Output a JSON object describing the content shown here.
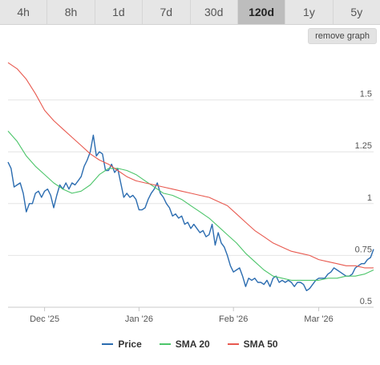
{
  "tabs": [
    {
      "label": "4h",
      "active": false
    },
    {
      "label": "8h",
      "active": false
    },
    {
      "label": "1d",
      "active": false
    },
    {
      "label": "7d",
      "active": false
    },
    {
      "label": "30d",
      "active": false
    },
    {
      "label": "120d",
      "active": true
    },
    {
      "label": "1y",
      "active": false
    },
    {
      "label": "5y",
      "active": false
    }
  ],
  "remove_graph_label": "remove graph",
  "colors": {
    "price": "#2b6cb0",
    "sma20": "#4cc56a",
    "sma50": "#e8594f"
  },
  "legend": [
    {
      "label": "Price",
      "color": "#2b6cb0"
    },
    {
      "label": "SMA 20",
      "color": "#4cc56a"
    },
    {
      "label": "SMA 50",
      "color": "#e8594f"
    }
  ],
  "chart_data": {
    "type": "line",
    "title": "",
    "xlabel": "",
    "ylabel": "",
    "x_start": "2025-11-19",
    "x_end": "2026-03-19",
    "x_ticks": [
      {
        "label": "Dec '25",
        "date": "2025-12-01"
      },
      {
        "label": "Jan '26",
        "date": "2026-01-01"
      },
      {
        "label": "Feb '26",
        "date": "2026-02-01"
      },
      {
        "label": "Mar '26",
        "date": "2026-03-01"
      }
    ],
    "y_ticks": [
      0.5,
      0.75,
      1,
      1.25,
      1.5
    ],
    "y_tick_labels": [
      "0.5",
      "0.75",
      "1",
      "1.25",
      "1.5"
    ],
    "ylim": [
      0.5,
      1.75
    ],
    "grid": true,
    "legend_position": "bottom",
    "series": [
      {
        "name": "Price",
        "color": "#2b6cb0",
        "points": [
          [
            "2025-11-19",
            1.2
          ],
          [
            "2025-11-20",
            1.17
          ],
          [
            "2025-11-21",
            1.08
          ],
          [
            "2025-11-22",
            1.09
          ],
          [
            "2025-11-23",
            1.1
          ],
          [
            "2025-11-24",
            1.05
          ],
          [
            "2025-11-25",
            0.96
          ],
          [
            "2025-11-26",
            1.0
          ],
          [
            "2025-11-27",
            1.0
          ],
          [
            "2025-11-28",
            1.05
          ],
          [
            "2025-11-29",
            1.06
          ],
          [
            "2025-11-30",
            1.03
          ],
          [
            "2025-12-01",
            1.06
          ],
          [
            "2025-12-02",
            1.07
          ],
          [
            "2025-12-03",
            1.04
          ],
          [
            "2025-12-04",
            0.98
          ],
          [
            "2025-12-05",
            1.04
          ],
          [
            "2025-12-06",
            1.09
          ],
          [
            "2025-12-07",
            1.07
          ],
          [
            "2025-12-08",
            1.1
          ],
          [
            "2025-12-09",
            1.07
          ],
          [
            "2025-12-10",
            1.1
          ],
          [
            "2025-12-11",
            1.09
          ],
          [
            "2025-12-12",
            1.11
          ],
          [
            "2025-12-13",
            1.13
          ],
          [
            "2025-12-14",
            1.18
          ],
          [
            "2025-12-15",
            1.21
          ],
          [
            "2025-12-16",
            1.25
          ],
          [
            "2025-12-17",
            1.33
          ],
          [
            "2025-12-18",
            1.23
          ],
          [
            "2025-12-19",
            1.25
          ],
          [
            "2025-12-20",
            1.24
          ],
          [
            "2025-12-21",
            1.16
          ],
          [
            "2025-12-22",
            1.16
          ],
          [
            "2025-12-23",
            1.19
          ],
          [
            "2025-12-24",
            1.15
          ],
          [
            "2025-12-25",
            1.17
          ],
          [
            "2025-12-26",
            1.1
          ],
          [
            "2025-12-27",
            1.03
          ],
          [
            "2025-12-28",
            1.05
          ],
          [
            "2025-12-29",
            1.03
          ],
          [
            "2025-12-30",
            1.04
          ],
          [
            "2025-12-31",
            1.02
          ],
          [
            "2026-01-01",
            0.97
          ],
          [
            "2026-01-02",
            0.97
          ],
          [
            "2026-01-03",
            0.98
          ],
          [
            "2026-01-04",
            1.02
          ],
          [
            "2026-01-05",
            1.05
          ],
          [
            "2026-01-06",
            1.07
          ],
          [
            "2026-01-07",
            1.1
          ],
          [
            "2026-01-08",
            1.05
          ],
          [
            "2026-01-09",
            1.03
          ],
          [
            "2026-01-10",
            1.0
          ],
          [
            "2026-01-11",
            0.98
          ],
          [
            "2026-01-12",
            0.94
          ],
          [
            "2026-01-13",
            0.95
          ],
          [
            "2026-01-14",
            0.93
          ],
          [
            "2026-01-15",
            0.94
          ],
          [
            "2026-01-16",
            0.9
          ],
          [
            "2026-01-17",
            0.91
          ],
          [
            "2026-01-18",
            0.88
          ],
          [
            "2026-01-19",
            0.9
          ],
          [
            "2026-01-20",
            0.88
          ],
          [
            "2026-01-21",
            0.86
          ],
          [
            "2026-01-22",
            0.87
          ],
          [
            "2026-01-23",
            0.84
          ],
          [
            "2026-01-24",
            0.85
          ],
          [
            "2026-01-25",
            0.9
          ],
          [
            "2026-01-26",
            0.8
          ],
          [
            "2026-01-27",
            0.86
          ],
          [
            "2026-01-28",
            0.81
          ],
          [
            "2026-01-29",
            0.79
          ],
          [
            "2026-01-30",
            0.75
          ],
          [
            "2026-01-31",
            0.7
          ],
          [
            "2026-02-01",
            0.67
          ],
          [
            "2026-02-02",
            0.68
          ],
          [
            "2026-02-03",
            0.69
          ],
          [
            "2026-02-04",
            0.65
          ],
          [
            "2026-02-05",
            0.6
          ],
          [
            "2026-02-06",
            0.64
          ],
          [
            "2026-02-07",
            0.63
          ],
          [
            "2026-02-08",
            0.64
          ],
          [
            "2026-02-09",
            0.62
          ],
          [
            "2026-02-10",
            0.62
          ],
          [
            "2026-02-11",
            0.61
          ],
          [
            "2026-02-12",
            0.63
          ],
          [
            "2026-02-13",
            0.6
          ],
          [
            "2026-02-14",
            0.64
          ],
          [
            "2026-02-15",
            0.65
          ],
          [
            "2026-02-16",
            0.62
          ],
          [
            "2026-02-17",
            0.63
          ],
          [
            "2026-02-18",
            0.62
          ],
          [
            "2026-02-19",
            0.63
          ],
          [
            "2026-02-20",
            0.62
          ],
          [
            "2026-02-21",
            0.6
          ],
          [
            "2026-02-22",
            0.62
          ],
          [
            "2026-02-23",
            0.62
          ],
          [
            "2026-02-24",
            0.61
          ],
          [
            "2026-02-25",
            0.58
          ],
          [
            "2026-02-26",
            0.59
          ],
          [
            "2026-02-27",
            0.61
          ],
          [
            "2026-02-28",
            0.63
          ],
          [
            "2026-03-01",
            0.64
          ],
          [
            "2026-03-02",
            0.64
          ],
          [
            "2026-03-03",
            0.64
          ],
          [
            "2026-03-04",
            0.66
          ],
          [
            "2026-03-05",
            0.67
          ],
          [
            "2026-03-06",
            0.69
          ],
          [
            "2026-03-07",
            0.68
          ],
          [
            "2026-03-08",
            0.67
          ],
          [
            "2026-03-09",
            0.66
          ],
          [
            "2026-03-10",
            0.65
          ],
          [
            "2026-03-11",
            0.65
          ],
          [
            "2026-03-12",
            0.66
          ],
          [
            "2026-03-13",
            0.69
          ],
          [
            "2026-03-14",
            0.7
          ],
          [
            "2026-03-15",
            0.71
          ],
          [
            "2026-03-16",
            0.71
          ],
          [
            "2026-03-17",
            0.73
          ],
          [
            "2026-03-18",
            0.74
          ],
          [
            "2026-03-19",
            0.78
          ]
        ]
      },
      {
        "name": "SMA 20",
        "color": "#4cc56a",
        "points": [
          [
            "2025-11-19",
            1.35
          ],
          [
            "2025-11-22",
            1.3
          ],
          [
            "2025-11-25",
            1.23
          ],
          [
            "2025-11-28",
            1.18
          ],
          [
            "2025-12-01",
            1.14
          ],
          [
            "2025-12-04",
            1.1
          ],
          [
            "2025-12-07",
            1.07
          ],
          [
            "2025-12-10",
            1.05
          ],
          [
            "2025-12-13",
            1.06
          ],
          [
            "2025-12-16",
            1.09
          ],
          [
            "2025-12-19",
            1.14
          ],
          [
            "2025-12-22",
            1.17
          ],
          [
            "2025-12-25",
            1.17
          ],
          [
            "2025-12-28",
            1.16
          ],
          [
            "2025-12-31",
            1.14
          ],
          [
            "2026-01-03",
            1.11
          ],
          [
            "2026-01-06",
            1.08
          ],
          [
            "2026-01-09",
            1.05
          ],
          [
            "2026-01-12",
            1.04
          ],
          [
            "2026-01-15",
            1.02
          ],
          [
            "2026-01-18",
            0.99
          ],
          [
            "2026-01-21",
            0.96
          ],
          [
            "2026-01-24",
            0.93
          ],
          [
            "2026-01-27",
            0.89
          ],
          [
            "2026-01-30",
            0.85
          ],
          [
            "2026-02-02",
            0.81
          ],
          [
            "2026-02-05",
            0.76
          ],
          [
            "2026-02-08",
            0.72
          ],
          [
            "2026-02-11",
            0.68
          ],
          [
            "2026-02-14",
            0.65
          ],
          [
            "2026-02-17",
            0.64
          ],
          [
            "2026-02-20",
            0.63
          ],
          [
            "2026-02-23",
            0.63
          ],
          [
            "2026-02-26",
            0.63
          ],
          [
            "2026-03-01",
            0.63
          ],
          [
            "2026-03-04",
            0.64
          ],
          [
            "2026-03-07",
            0.64
          ],
          [
            "2026-03-10",
            0.65
          ],
          [
            "2026-03-13",
            0.65
          ],
          [
            "2026-03-16",
            0.66
          ],
          [
            "2026-03-19",
            0.68
          ]
        ]
      },
      {
        "name": "SMA 50",
        "color": "#e8594f",
        "points": [
          [
            "2025-11-19",
            1.68
          ],
          [
            "2025-11-22",
            1.65
          ],
          [
            "2025-11-25",
            1.6
          ],
          [
            "2025-11-28",
            1.53
          ],
          [
            "2025-12-01",
            1.45
          ],
          [
            "2025-12-04",
            1.4
          ],
          [
            "2025-12-07",
            1.36
          ],
          [
            "2025-12-10",
            1.32
          ],
          [
            "2025-12-13",
            1.28
          ],
          [
            "2025-12-16",
            1.24
          ],
          [
            "2025-12-19",
            1.21
          ],
          [
            "2025-12-22",
            1.19
          ],
          [
            "2025-12-25",
            1.16
          ],
          [
            "2025-12-28",
            1.13
          ],
          [
            "2025-12-31",
            1.11
          ],
          [
            "2026-01-03",
            1.1
          ],
          [
            "2026-01-06",
            1.09
          ],
          [
            "2026-01-09",
            1.08
          ],
          [
            "2026-01-12",
            1.07
          ],
          [
            "2026-01-15",
            1.06
          ],
          [
            "2026-01-18",
            1.05
          ],
          [
            "2026-01-21",
            1.04
          ],
          [
            "2026-01-24",
            1.03
          ],
          [
            "2026-01-27",
            1.01
          ],
          [
            "2026-01-30",
            0.99
          ],
          [
            "2026-02-02",
            0.95
          ],
          [
            "2026-02-05",
            0.91
          ],
          [
            "2026-02-08",
            0.87
          ],
          [
            "2026-02-11",
            0.84
          ],
          [
            "2026-02-14",
            0.81
          ],
          [
            "2026-02-17",
            0.79
          ],
          [
            "2026-02-20",
            0.77
          ],
          [
            "2026-02-23",
            0.76
          ],
          [
            "2026-02-26",
            0.75
          ],
          [
            "2026-03-01",
            0.73
          ],
          [
            "2026-03-04",
            0.72
          ],
          [
            "2026-03-07",
            0.71
          ],
          [
            "2026-03-10",
            0.7
          ],
          [
            "2026-03-13",
            0.7
          ],
          [
            "2026-03-16",
            0.69
          ],
          [
            "2026-03-19",
            0.69
          ]
        ]
      }
    ]
  }
}
